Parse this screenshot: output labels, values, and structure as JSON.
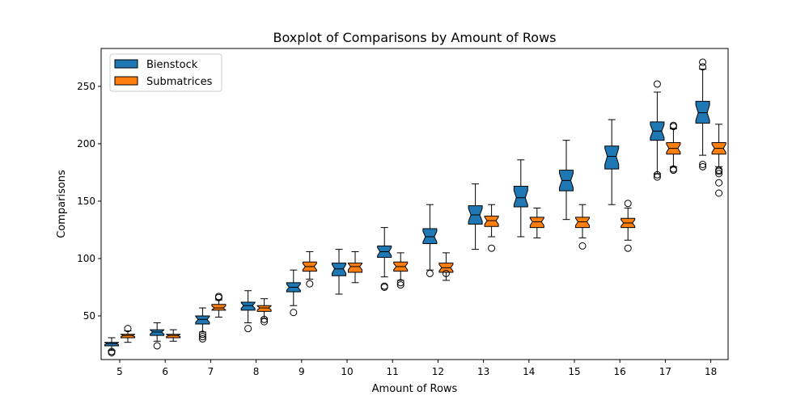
{
  "chart_data": {
    "type": "boxplot",
    "title": "Boxplot of Comparisons by Amount of Rows",
    "xlabel": "Amount of Rows",
    "ylabel": "Comparisons",
    "categories": [
      "5",
      "6",
      "7",
      "8",
      "9",
      "10",
      "11",
      "12",
      "13",
      "14",
      "15",
      "16",
      "17",
      "18"
    ],
    "ylim": [
      12,
      283
    ],
    "yticks": [
      50,
      100,
      150,
      200,
      250
    ],
    "grid": false,
    "legend_position": "top-left",
    "notched": true,
    "series": [
      {
        "name": "Bienstock",
        "color": "#1f77b4",
        "boxes": [
          {
            "whislo": 20,
            "q1": 24,
            "med": 26,
            "q3": 27,
            "whishi": 31,
            "fliers": [
              18,
              19
            ]
          },
          {
            "whislo": 28,
            "q1": 33,
            "med": 36,
            "q3": 38,
            "whishi": 44,
            "fliers": [
              24
            ]
          },
          {
            "whislo": 36,
            "q1": 43,
            "med": 47,
            "q3": 50,
            "whishi": 57,
            "fliers": [
              30,
              32,
              34
            ]
          },
          {
            "whislo": 44,
            "q1": 55,
            "med": 59,
            "q3": 62,
            "whishi": 72,
            "fliers": [
              39
            ]
          },
          {
            "whislo": 59,
            "q1": 71,
            "med": 75,
            "q3": 79,
            "whishi": 90,
            "fliers": [
              53
            ]
          },
          {
            "whislo": 69,
            "q1": 85,
            "med": 91,
            "q3": 96,
            "whishi": 108,
            "fliers": []
          },
          {
            "whislo": 84,
            "q1": 101,
            "med": 106,
            "q3": 111,
            "whishi": 127,
            "fliers": [
              75,
              76
            ]
          },
          {
            "whislo": 90,
            "q1": 113,
            "med": 119,
            "q3": 126,
            "whishi": 147,
            "fliers": [
              87
            ]
          },
          {
            "whislo": 108,
            "q1": 130,
            "med": 138,
            "q3": 146,
            "whishi": 165,
            "fliers": []
          },
          {
            "whislo": 119,
            "q1": 145,
            "med": 153,
            "q3": 163,
            "whishi": 186,
            "fliers": []
          },
          {
            "whislo": 134,
            "q1": 159,
            "med": 168,
            "q3": 177,
            "whishi": 203,
            "fliers": []
          },
          {
            "whislo": 147,
            "q1": 178,
            "med": 189,
            "q3": 198,
            "whishi": 221,
            "fliers": []
          },
          {
            "whislo": 174,
            "q1": 203,
            "med": 211,
            "q3": 219,
            "whishi": 245,
            "fliers": [
              171,
              173,
              252
            ]
          },
          {
            "whislo": 190,
            "q1": 218,
            "med": 227,
            "q3": 237,
            "whishi": 265,
            "fliers": [
              180,
              182,
              267,
              271
            ]
          }
        ]
      },
      {
        "name": "Submatrices",
        "color": "#ff7f0e",
        "boxes": [
          {
            "whislo": 27,
            "q1": 31,
            "med": 33,
            "q3": 34,
            "whishi": 37,
            "fliers": [
              39
            ]
          },
          {
            "whislo": 28,
            "q1": 31,
            "med": 33,
            "q3": 34,
            "whishi": 38,
            "fliers": []
          },
          {
            "whislo": 49,
            "q1": 55,
            "med": 57,
            "q3": 60,
            "whishi": 64,
            "fliers": [
              66,
              67
            ]
          },
          {
            "whislo": 48,
            "q1": 54,
            "med": 57,
            "q3": 59,
            "whishi": 65,
            "fliers": [
              45,
              47
            ]
          },
          {
            "whislo": 82,
            "q1": 89,
            "med": 93,
            "q3": 97,
            "whishi": 106,
            "fliers": [
              78
            ]
          },
          {
            "whislo": 79,
            "q1": 88,
            "med": 93,
            "q3": 96,
            "whishi": 106,
            "fliers": []
          },
          {
            "whislo": 81,
            "q1": 89,
            "med": 93,
            "q3": 97,
            "whishi": 105,
            "fliers": [
              77,
              79
            ]
          },
          {
            "whislo": 81,
            "q1": 88,
            "med": 92,
            "q3": 96,
            "whishi": 105,
            "fliers": [
              87
            ]
          },
          {
            "whislo": 119,
            "q1": 128,
            "med": 133,
            "q3": 137,
            "whishi": 147,
            "fliers": [
              109
            ]
          },
          {
            "whislo": 118,
            "q1": 127,
            "med": 132,
            "q3": 136,
            "whishi": 144,
            "fliers": []
          },
          {
            "whislo": 118,
            "q1": 127,
            "med": 132,
            "q3": 136,
            "whishi": 147,
            "fliers": [
              111
            ]
          },
          {
            "whislo": 116,
            "q1": 127,
            "med": 131,
            "q3": 135,
            "whishi": 144,
            "fliers": [
              109,
              148
            ]
          },
          {
            "whislo": 180,
            "q1": 191,
            "med": 196,
            "q3": 201,
            "whishi": 213,
            "fliers": [
              177,
              178,
              215,
              216
            ]
          },
          {
            "whislo": 180,
            "q1": 191,
            "med": 196,
            "q3": 201,
            "whishi": 217,
            "fliers": [
              157,
              166,
              174,
              176,
              177
            ]
          }
        ]
      }
    ]
  }
}
